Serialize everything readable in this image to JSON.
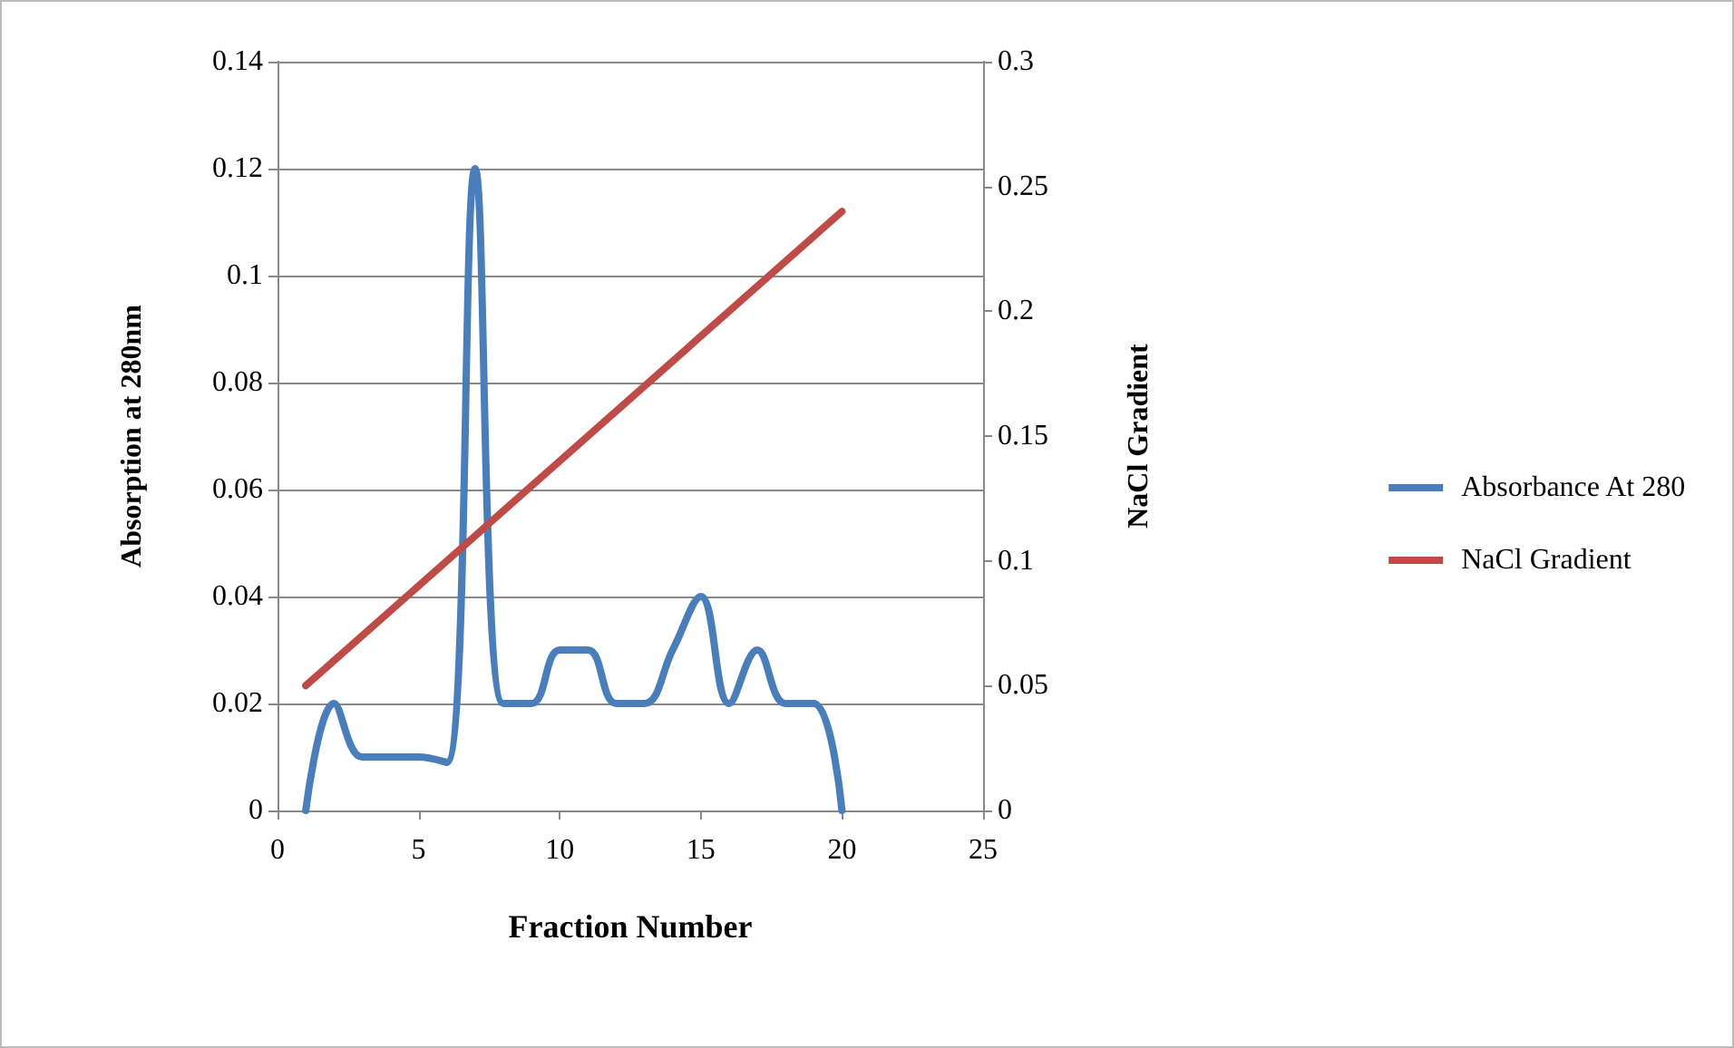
{
  "chart_data": {
    "type": "line",
    "xlabel": "Fraction Number",
    "ylabel": "Absorption at 280nm",
    "y2label": "NaCl Gradient",
    "x": [
      1,
      2,
      3,
      4,
      5,
      6,
      7,
      8,
      9,
      10,
      11,
      12,
      13,
      14,
      15,
      16,
      17,
      18,
      19,
      20
    ],
    "series": [
      {
        "name": "Absorbance At 280",
        "color": "#4a7ebb",
        "values": [
          0,
          0.02,
          0.01,
          0.01,
          0.01,
          0.009,
          0.12,
          0.02,
          0.02,
          0.03,
          0.03,
          0.02,
          0.02,
          0.03,
          0.04,
          0.02,
          0.03,
          0.02,
          0.02,
          0
        ]
      },
      {
        "name": "NaCl Gradient",
        "color": "#be4b48",
        "axis": "y2",
        "values": [
          0.05,
          0.06,
          0.07,
          0.08,
          0.09,
          0.1,
          0.11,
          0.12,
          0.13,
          0.14,
          0.15,
          0.16,
          0.17,
          0.18,
          0.19,
          0.2,
          0.21,
          0.22,
          0.23,
          0.24
        ]
      }
    ],
    "xlim": [
      0,
      25
    ],
    "xticks": [
      0,
      5,
      10,
      15,
      20,
      25
    ],
    "ylim": [
      0,
      0.14
    ],
    "yticks": [
      0,
      0.02,
      0.04,
      0.06,
      0.08,
      0.1,
      0.12,
      0.14
    ],
    "y2lim": [
      0,
      0.3
    ],
    "y2ticks": [
      0,
      0.05,
      0.1,
      0.15,
      0.2,
      0.25,
      0.3
    ],
    "grid": "y",
    "legend": "right",
    "marker": "none",
    "line_style": "solid"
  }
}
